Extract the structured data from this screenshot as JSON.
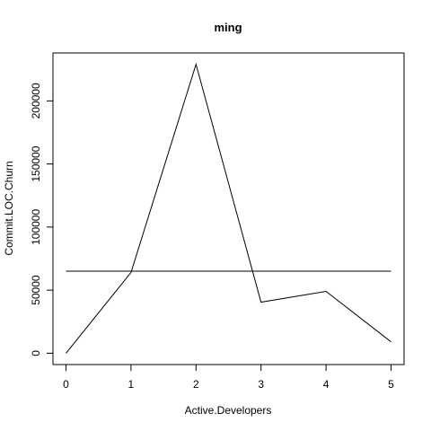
{
  "chart_data": {
    "type": "line",
    "title": "ming",
    "xlabel": "Active.Developers",
    "ylabel": "Commit.LOC.Churn",
    "xlim": [
      -0.2,
      5.2
    ],
    "ylim": [
      -9000,
      238000
    ],
    "x_ticks": [
      0,
      1,
      2,
      3,
      4,
      5
    ],
    "y_ticks": [
      0,
      50000,
      100000,
      150000,
      200000
    ],
    "grid": false,
    "series": [
      {
        "x": [
          0,
          1,
          2,
          3,
          4,
          5
        ],
        "values": [
          0,
          64000,
          229000,
          40500,
          49000,
          9000
        ]
      },
      {
        "x": [
          0,
          5
        ],
        "values": [
          65000,
          65000
        ]
      }
    ]
  }
}
